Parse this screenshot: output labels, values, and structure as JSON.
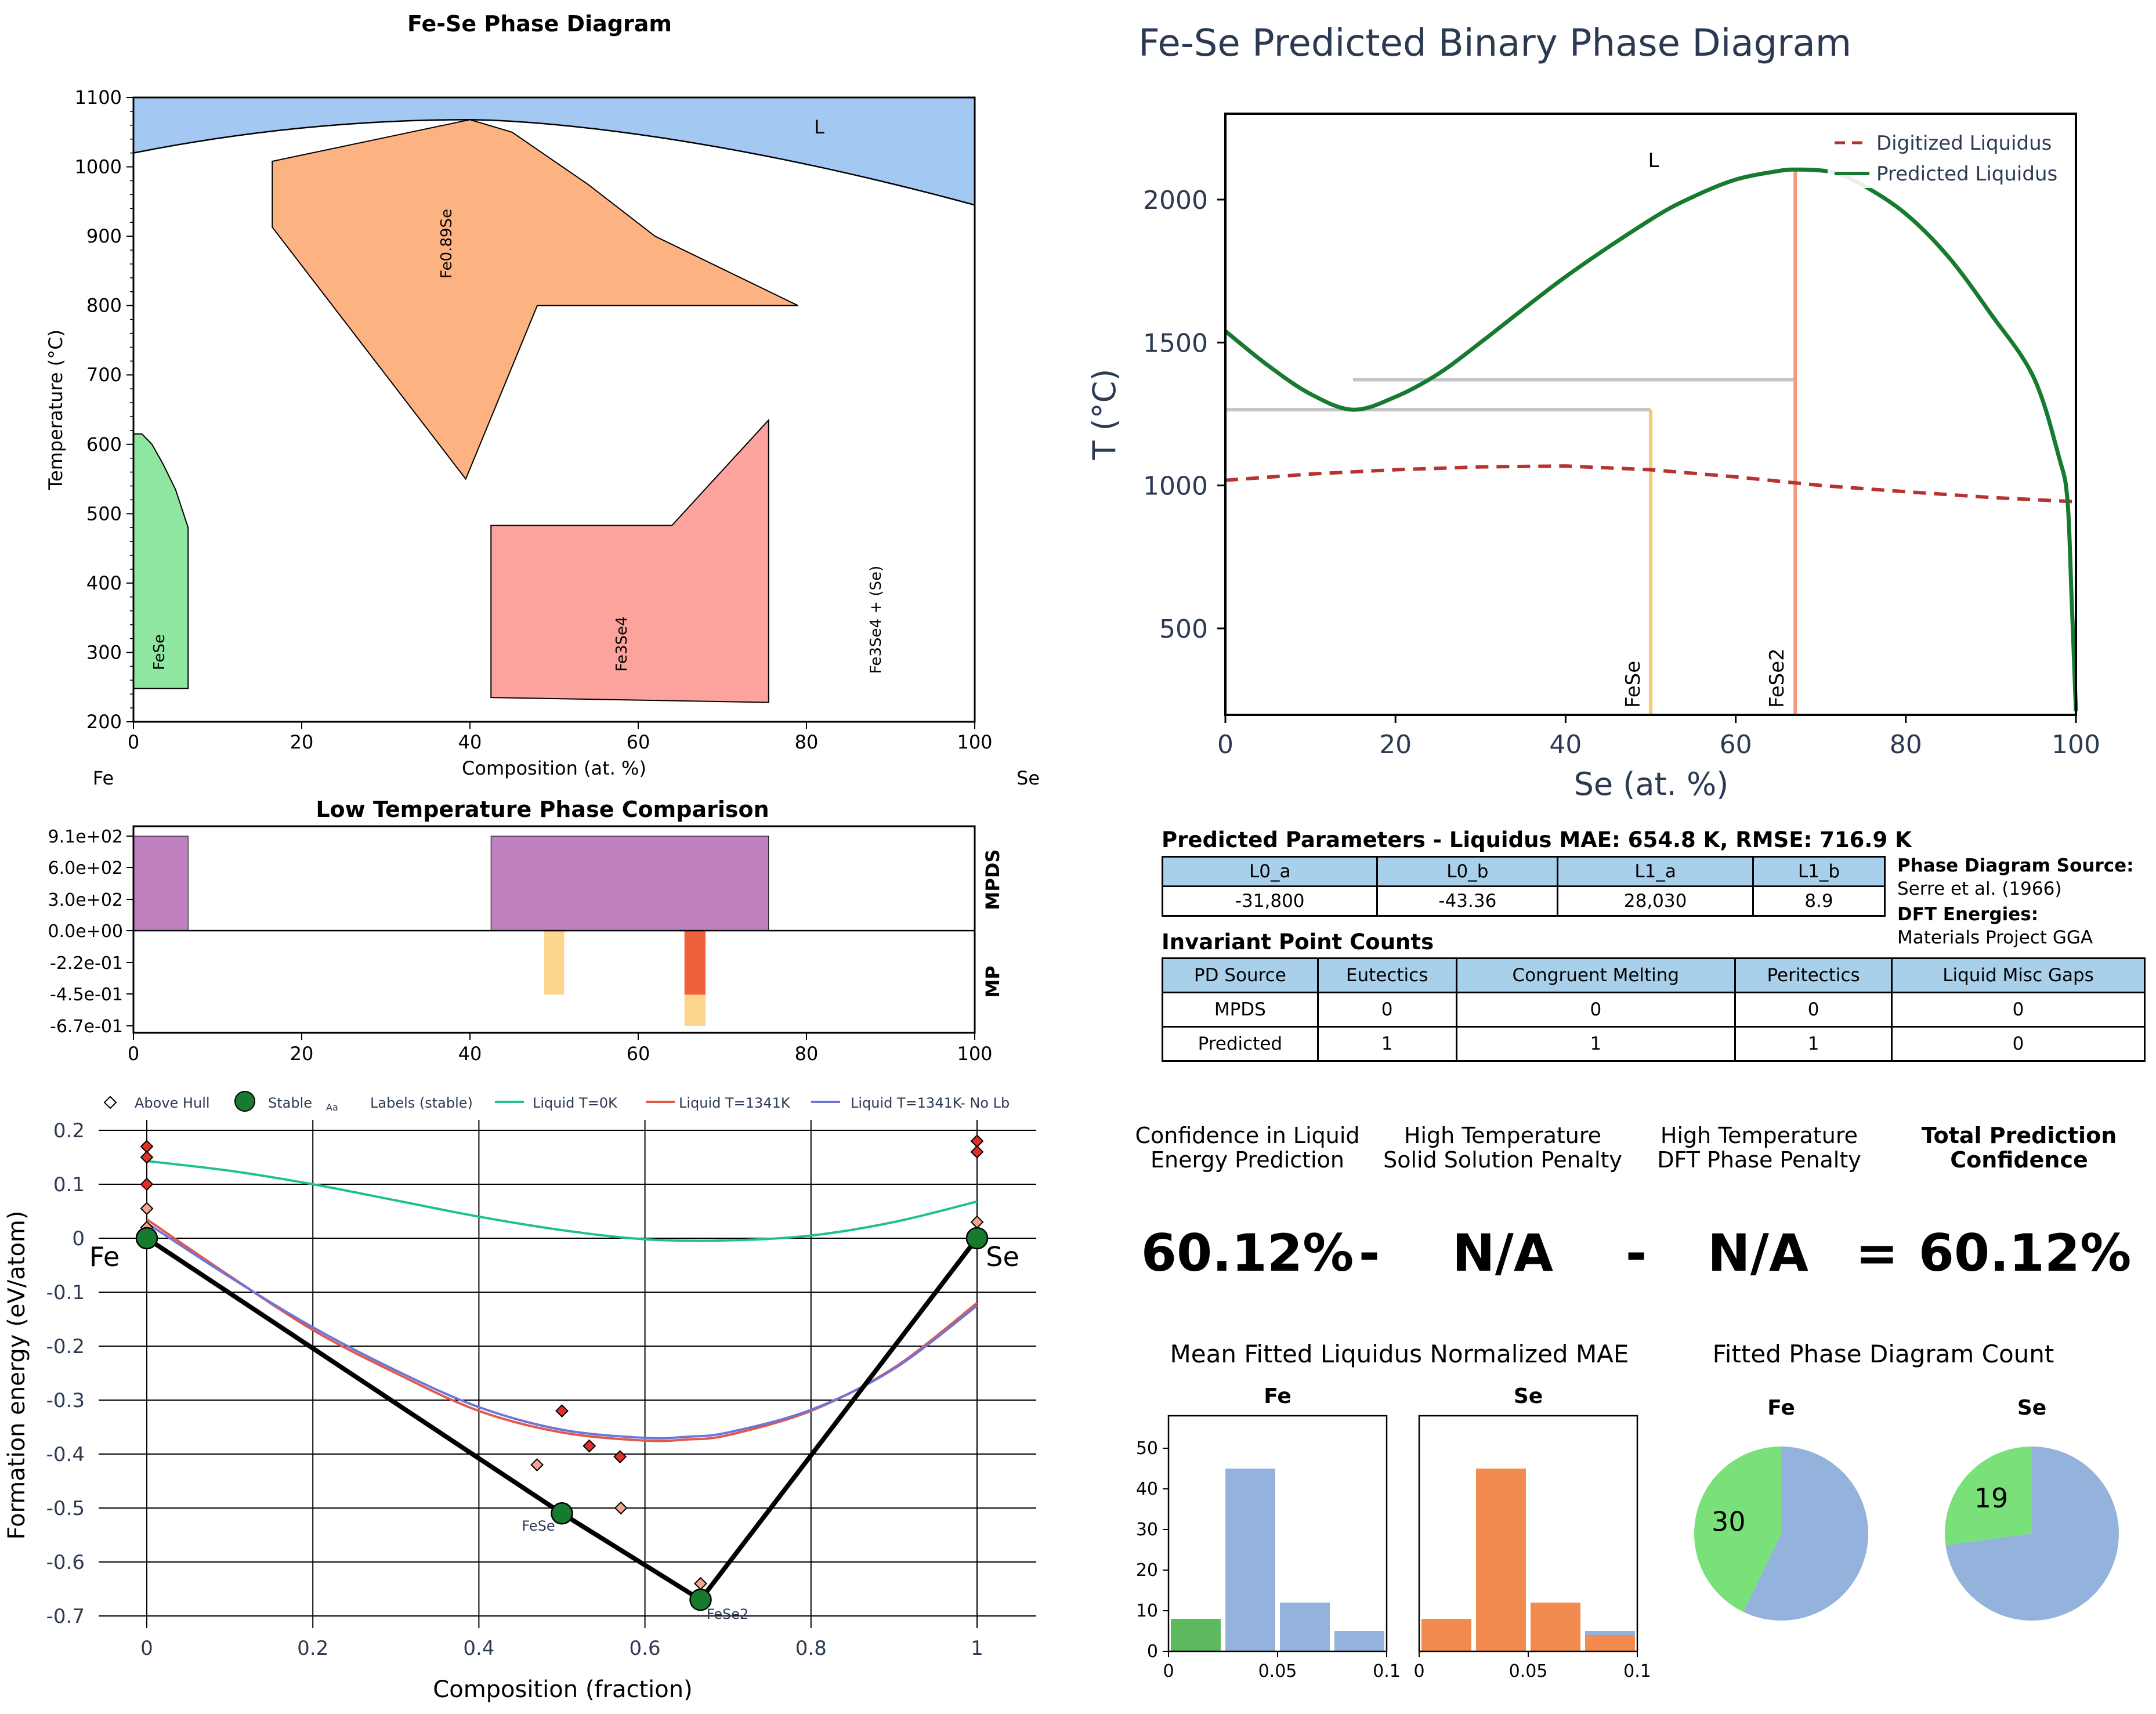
{
  "panel_pd": {
    "title": "Fe-Se Phase Diagram",
    "xlabel": "Composition (at. %)",
    "ylabel": "Temperature (°C)",
    "left_element": "Fe",
    "right_element": "Se",
    "phase_labels": {
      "L": "L",
      "fe089se": "Fe0.89Se",
      "fese": "FeSe",
      "fe3se4": "Fe3Se4",
      "fe3se4se": "Fe3Se4 + (Se)"
    }
  },
  "panel_lowt": {
    "title": "Low Temperature Phase Comparison",
    "label_top": "MPDS",
    "label_bottom": "MP",
    "yticks": [
      "9.1e+02",
      "6.0e+02",
      "3.0e+02",
      "0.0e+00",
      "-2.2e-01",
      "-4.5e-01",
      "-6.7e-01"
    ]
  },
  "panel_hull": {
    "xlabel": "Composition (fraction)",
    "ylabel": "Formation energy (eV/atom)",
    "legend": [
      "Above Hull",
      "Stable",
      "Labels (stable)",
      "Liquid T=0K",
      "Liquid T=1341K",
      "Liquid T=1341K- No Lb"
    ],
    "legend_small_label": "Aa",
    "endpoint_labels": [
      "Fe",
      "Se"
    ],
    "point_labels": [
      "FeSe",
      "FeSe2"
    ]
  },
  "panel_pred": {
    "title": "Fe-Se Predicted Binary Phase Diagram",
    "xlabel": "Se (at. %)",
    "ylabel": "T (°C)",
    "legend": [
      "Digitized Liquidus",
      "Predicted Liquidus"
    ],
    "phase_label": "L",
    "compound_labels": [
      "FeSe",
      "FeSe2"
    ]
  },
  "params_table": {
    "title": "Predicted Parameters - Liquidus MAE: 654.8 K, RMSE: 716.9 K",
    "headers": [
      "L0_a",
      "L0_b",
      "L1_a",
      "L1_b"
    ],
    "values": [
      "-31,800",
      "-43.36",
      "28,030",
      "8.9"
    ]
  },
  "source_info": {
    "pd_label": "Phase Diagram Source:",
    "pd_value": "Serre et al. (1966)",
    "dft_label": "DFT Energies:",
    "dft_value": "Materials Project GGA"
  },
  "invariant_table": {
    "title": "Invariant Point Counts",
    "headers": [
      "PD Source",
      "Eutectics",
      "Congruent Melting",
      "Peritectics",
      "Liquid Misc Gaps"
    ],
    "rows": [
      [
        "MPDS",
        "0",
        "0",
        "0",
        "0"
      ],
      [
        "Predicted",
        "1",
        "1",
        "1",
        "0"
      ]
    ]
  },
  "confidence": {
    "h1": "Confidence in Liquid\nEnergy Prediction",
    "h2": "High Temperature\nSolid Solution Penalty",
    "h3": "High Temperature\nDFT Phase Penalty",
    "h4": "Total Prediction\nConfidence",
    "v1": "60.12%",
    "op1": "-",
    "v2": "N/A",
    "op2": "-",
    "v3": "N/A",
    "op3": "=",
    "v4": "60.12%"
  },
  "mae_hist": {
    "title": "Mean Fitted Liquidus Normalized MAE",
    "left_title": "Fe",
    "right_title": "Se"
  },
  "pie": {
    "title": "Fitted Phase Diagram Count",
    "left_title": "Fe",
    "right_title": "Se"
  },
  "colors": {
    "liquid": "#a3c8f2",
    "fe089se": "#fdb381",
    "fese": "#8ee6a0",
    "fe3se4": "#fba39c",
    "purple": "#bf80bf",
    "yellow": "#fcd181",
    "red": "#f05f3c",
    "green_dark": "#167a2f",
    "teal": "#1fc08f",
    "hull_red": "#e0584a",
    "hull_blue": "#6e74d8",
    "navy_text": "#2b3a52",
    "pie_green": "#79e07a",
    "pie_blue": "#94b3dc",
    "hist_orange": "#f28b4f",
    "hist_green": "#5fb95f"
  },
  "chart_data": [
    {
      "type": "area",
      "title": "Fe-Se Phase Diagram",
      "xlabel": "Composition (at. %)",
      "ylabel": "Temperature (°C)",
      "xlim": [
        0,
        100
      ],
      "ylim": [
        200,
        1100
      ],
      "xticks": [
        0,
        20,
        40,
        60,
        80,
        100
      ],
      "yticks": [
        200,
        300,
        400,
        500,
        600,
        700,
        800,
        900,
        1000,
        1100
      ],
      "regions": [
        {
          "name": "L",
          "points": [
            [
              0,
              1020
            ],
            [
              40,
              1068
            ],
            [
              100,
              945
            ],
            [
              100,
              1100
            ],
            [
              0,
              1100
            ]
          ]
        },
        {
          "name": "Fe0.89Se",
          "points": [
            [
              16.5,
              1008
            ],
            [
              40,
              1068
            ],
            [
              45,
              1050
            ],
            [
              54,
              975
            ],
            [
              62,
              900
            ],
            [
              79,
              800
            ],
            [
              48,
              800
            ],
            [
              39.5,
              550
            ],
            [
              16.5,
              913
            ]
          ]
        },
        {
          "name": "FeSe",
          "points": [
            [
              0,
              615
            ],
            [
              1,
              615
            ],
            [
              3.5,
              570
            ],
            [
              6.5,
              480
            ],
            [
              6.5,
              248
            ],
            [
              0,
              248
            ]
          ]
        },
        {
          "name": "Fe3Se4",
          "points": [
            [
              42.5,
              483
            ],
            [
              64,
              483
            ],
            [
              75.5,
              635
            ],
            [
              75.5,
              228
            ],
            [
              42.5,
              235
            ]
          ]
        }
      ]
    },
    {
      "type": "bar",
      "title": "Low Temperature Phase Comparison",
      "xlim": [
        0,
        100
      ],
      "xticks": [
        0,
        20,
        40,
        60,
        80,
        100
      ],
      "mpds_bars": [
        {
          "x0": 0,
          "x1": 6.5,
          "value": 910
        },
        {
          "x0": 42.5,
          "x1": 75.5,
          "value": 910
        }
      ],
      "mp_bars": [
        {
          "x0": 48.8,
          "x1": 51.2,
          "value": -0.45,
          "color": "yellow"
        },
        {
          "x0": 65.5,
          "x1": 68,
          "value": -0.67,
          "color": "yellow"
        },
        {
          "x0": 65.5,
          "x1": 68,
          "value": -0.45,
          "color": "red"
        }
      ]
    },
    {
      "type": "scatter",
      "xlabel": "Composition (fraction)",
      "ylabel": "Formation energy (eV/atom)",
      "xlim": [
        -0.06,
        1.07
      ],
      "ylim": [
        -0.73,
        0.21
      ],
      "xticks": [
        0,
        0.2,
        0.4,
        0.6,
        0.8,
        1
      ],
      "yticks": [
        0.2,
        0.1,
        0,
        -0.1,
        -0.2,
        -0.3,
        -0.4,
        -0.5,
        -0.6,
        -0.7
      ],
      "stable": [
        {
          "x": 0,
          "y": 0,
          "label": "Fe"
        },
        {
          "x": 0.5,
          "y": -0.51,
          "label": "FeSe"
        },
        {
          "x": 0.667,
          "y": -0.67,
          "label": "FeSe2"
        },
        {
          "x": 1,
          "y": 0,
          "label": "Se"
        }
      ],
      "above_hull": [
        {
          "x": 0,
          "y": 0.17
        },
        {
          "x": 0,
          "y": 0.15
        },
        {
          "x": 0,
          "y": 0.1
        },
        {
          "x": 0,
          "y": 0.055
        },
        {
          "x": 0,
          "y": 0.02
        },
        {
          "x": 0.47,
          "y": -0.42
        },
        {
          "x": 0.5,
          "y": -0.32
        },
        {
          "x": 0.533,
          "y": -0.385
        },
        {
          "x": 0.57,
          "y": -0.405
        },
        {
          "x": 0.571,
          "y": -0.5
        },
        {
          "x": 0.667,
          "y": -0.64
        },
        {
          "x": 1,
          "y": 0.18
        },
        {
          "x": 1,
          "y": 0.16
        },
        {
          "x": 1,
          "y": 0.03
        }
      ],
      "series": [
        {
          "name": "Liquid T=0K",
          "x": [
            0,
            0.1,
            0.2,
            0.3,
            0.4,
            0.5,
            0.6,
            0.7,
            0.8,
            0.9,
            1.0
          ],
          "y": [
            0.143,
            0.125,
            0.1,
            0.07,
            0.04,
            0.015,
            -0.002,
            -0.004,
            0.005,
            0.03,
            0.068
          ]
        },
        {
          "name": "Liquid T=1341K",
          "x": [
            0,
            0.1,
            0.2,
            0.3,
            0.4,
            0.5,
            0.6,
            0.65,
            0.7,
            0.8,
            0.9,
            1.0
          ],
          "y": [
            0.035,
            -0.07,
            -0.17,
            -0.25,
            -0.32,
            -0.36,
            -0.375,
            -0.373,
            -0.365,
            -0.32,
            -0.24,
            -0.12
          ]
        },
        {
          "name": "Liquid T=1341K- No Lb",
          "x": [
            0,
            0.1,
            0.2,
            0.3,
            0.4,
            0.5,
            0.6,
            0.65,
            0.7,
            0.8,
            0.9,
            1.0
          ],
          "y": [
            0.028,
            -0.072,
            -0.165,
            -0.245,
            -0.313,
            -0.355,
            -0.37,
            -0.368,
            -0.36,
            -0.318,
            -0.242,
            -0.125
          ]
        }
      ],
      "hull": {
        "x": [
          0,
          0.5,
          0.667,
          1
        ],
        "y": [
          0,
          -0.51,
          -0.67,
          0
        ]
      }
    },
    {
      "type": "line",
      "title": "Fe-Se Predicted Binary Phase Diagram",
      "xlabel": "Se (at. %)",
      "ylabel": "T (°C)",
      "xlim": [
        0,
        100
      ],
      "ylim": [
        200,
        2300
      ],
      "xticks": [
        0,
        20,
        40,
        60,
        80,
        100
      ],
      "yticks": [
        500,
        1000,
        1500,
        2000
      ],
      "series": [
        {
          "name": "Digitized Liquidus",
          "x": [
            0,
            10,
            20,
            30,
            40,
            50,
            60,
            70,
            80,
            90,
            100
          ],
          "y": [
            1018,
            1040,
            1055,
            1065,
            1068,
            1055,
            1030,
            1000,
            978,
            958,
            943
          ]
        },
        {
          "name": "Predicted Liquidus",
          "x": [
            0,
            5,
            10,
            15,
            20,
            25,
            30,
            40,
            50,
            55,
            60,
            65,
            67,
            70,
            72,
            75,
            80,
            85,
            90,
            95,
            98,
            99,
            99.5,
            100
          ],
          "y": [
            1540,
            1420,
            1320,
            1265,
            1310,
            1390,
            1500,
            1730,
            1930,
            2010,
            2070,
            2100,
            2105,
            2102,
            2090,
            2050,
            1950,
            1800,
            1600,
            1380,
            1100,
            950,
            600,
            210
          ]
        }
      ],
      "compounds": [
        {
          "name": "FeSe",
          "x": 50
        },
        {
          "name": "FeSe2",
          "x": 67
        }
      ],
      "invariant_lines": [
        {
          "x0": 0,
          "x1": 50,
          "y": 1265
        },
        {
          "x0": 15,
          "x1": 67,
          "y": 1370
        }
      ]
    },
    {
      "type": "bar",
      "title": "Mean Fitted Liquidus Normalized MAE",
      "subplots": [
        {
          "name": "Fe",
          "bins": [
            [
              0,
              0.025
            ],
            [
              0.025,
              0.05
            ],
            [
              0.05,
              0.075
            ],
            [
              0.075,
              0.1
            ]
          ],
          "values": [
            8,
            45,
            12,
            5
          ]
        },
        {
          "name": "Se",
          "bins": [
            [
              0,
              0.025
            ],
            [
              0.025,
              0.05
            ],
            [
              0.05,
              0.075
            ],
            [
              0.075,
              0.1
            ]
          ],
          "values": [
            8,
            45,
            12,
            5
          ]
        }
      ],
      "ylim": [
        0,
        58
      ],
      "yticks": [
        0,
        10,
        20,
        30,
        40,
        50
      ],
      "xticks": [
        "0",
        "0.05",
        "0.1"
      ]
    },
    {
      "type": "pie",
      "title": "Fitted Phase Diagram Count",
      "subplots": [
        {
          "name": "Fe",
          "values": [
            30,
            40
          ],
          "labels": [
            "30",
            ""
          ]
        },
        {
          "name": "Se",
          "values": [
            19,
            51
          ],
          "labels": [
            "19",
            ""
          ]
        }
      ]
    }
  ]
}
